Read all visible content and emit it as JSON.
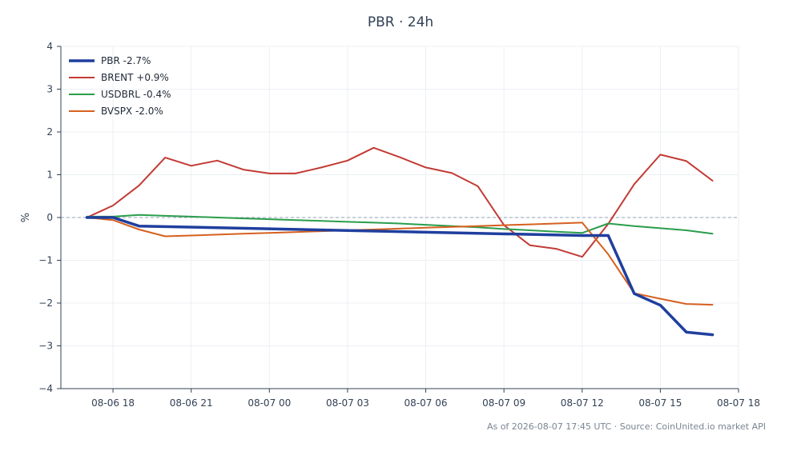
{
  "chart_data": {
    "type": "line",
    "title": "PBR · 24h",
    "ylabel": "%",
    "xlabel": "",
    "ylim": [
      -4,
      4
    ],
    "yticks": [
      -4,
      -3,
      -2,
      -1,
      0,
      1,
      2,
      3,
      4
    ],
    "ytick_labels": [
      "−4",
      "−3",
      "−2",
      "−1",
      "0",
      "1",
      "2",
      "3",
      "4"
    ],
    "xlim": [
      16,
      42
    ],
    "xticks": [
      18,
      21,
      24,
      27,
      30,
      33,
      36,
      39,
      42
    ],
    "xtick_labels": [
      "08-06 18",
      "08-06 21",
      "08-07 00",
      "08-07 03",
      "08-07 06",
      "08-07 09",
      "08-07 12",
      "08-07 15",
      "08-07 18"
    ],
    "grid": true,
    "zero_line": true,
    "legend_position": "top-left",
    "series": [
      {
        "name": "PBR -2.7%",
        "color": "#1f3f9e",
        "width": 3.5,
        "x": [
          17,
          18,
          19,
          36,
          37,
          38,
          39,
          40,
          41
        ],
        "y": [
          0.0,
          0.0,
          -0.2,
          -0.42,
          -0.42,
          -1.78,
          -2.05,
          -2.68,
          -2.74
        ]
      },
      {
        "name": "BRENT +0.9%",
        "color": "#c23b35",
        "width": 2,
        "x": [
          17,
          18,
          19,
          20,
          21,
          22,
          23,
          24,
          25,
          26,
          27,
          28,
          29,
          30,
          31,
          32,
          33,
          34,
          35,
          36,
          37,
          38,
          39,
          40,
          41
        ],
        "y": [
          0.0,
          0.28,
          0.75,
          1.4,
          1.21,
          1.33,
          1.12,
          1.03,
          1.03,
          1.17,
          1.33,
          1.63,
          1.41,
          1.17,
          1.04,
          0.73,
          -0.18,
          -0.65,
          -0.73,
          -0.92,
          -0.15,
          0.78,
          1.47,
          1.32,
          0.86
        ]
      },
      {
        "name": "USDBRL -0.4%",
        "color": "#2a9d4b",
        "width": 2,
        "x": [
          17,
          18,
          19,
          20,
          21,
          22,
          23,
          24,
          25,
          26,
          27,
          28,
          29,
          30,
          31,
          32,
          33,
          34,
          35,
          36,
          37,
          38,
          39,
          40,
          41
        ],
        "y": [
          0.02,
          0.02,
          0.06,
          0.04,
          0.02,
          0.0,
          -0.02,
          -0.04,
          -0.06,
          -0.08,
          -0.1,
          -0.12,
          -0.14,
          -0.17,
          -0.2,
          -0.23,
          -0.27,
          -0.3,
          -0.33,
          -0.36,
          -0.14,
          -0.2,
          -0.25,
          -0.3,
          -0.38
        ]
      },
      {
        "name": "BVSPX -2.0%",
        "color": "#d6601f",
        "width": 2,
        "x": [
          17,
          18,
          19,
          20,
          21,
          22,
          23,
          24,
          25,
          26,
          27,
          28,
          29,
          30,
          31,
          32,
          33,
          34,
          35,
          36,
          37,
          38,
          39,
          40,
          41
        ],
        "y": [
          0.0,
          -0.06,
          -0.28,
          -0.44,
          -0.42,
          -0.4,
          -0.38,
          -0.36,
          -0.34,
          -0.32,
          -0.3,
          -0.28,
          -0.26,
          -0.24,
          -0.22,
          -0.2,
          -0.18,
          -0.16,
          -0.14,
          -0.12,
          -0.86,
          -1.77,
          -1.9,
          -2.02,
          -2.04
        ]
      }
    ]
  },
  "footer": {
    "note": "As of 2026-08-07 17:45 UTC · Source: CoinUnited.io market API"
  }
}
